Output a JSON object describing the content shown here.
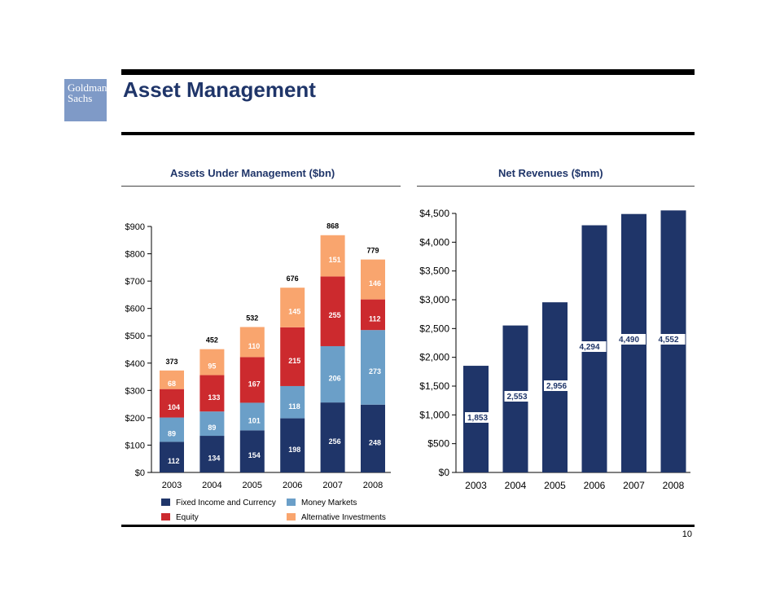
{
  "logo": {
    "line1": "Goldman",
    "line2": "Sachs"
  },
  "header": {
    "title": "Asset Management"
  },
  "page_number": "10",
  "chart_data": [
    {
      "type": "bar",
      "stacked": true,
      "title": "Assets Under Management ($bn)",
      "categories": [
        "2003",
        "2004",
        "2005",
        "2006",
        "2007",
        "2008"
      ],
      "yticks": [
        "$0",
        "$100",
        "$200",
        "$300",
        "$400",
        "$500",
        "$600",
        "$700",
        "$800",
        "$900"
      ],
      "ylim": [
        0,
        900
      ],
      "series": [
        {
          "name": "Fixed Income and Currency",
          "color": "#1f3569",
          "values": [
            112,
            134,
            154,
            198,
            256,
            248
          ]
        },
        {
          "name": "Money Markets",
          "color": "#6b9fc8",
          "values": [
            89,
            89,
            101,
            118,
            206,
            273
          ]
        },
        {
          "name": "Equity",
          "color": "#cc2a2e",
          "values": [
            104,
            133,
            167,
            215,
            255,
            112
          ]
        },
        {
          "name": "Alternative Investments",
          "color": "#f9a56e",
          "values": [
            68,
            95,
            110,
            145,
            151,
            146
          ]
        }
      ],
      "totals": [
        373,
        452,
        532,
        676,
        868,
        779
      ],
      "legend": "bottom"
    },
    {
      "type": "bar",
      "title": "Net Revenues ($mm)",
      "categories": [
        "2003",
        "2004",
        "2005",
        "2006",
        "2007",
        "2008"
      ],
      "values": [
        1853,
        2553,
        2956,
        4294,
        4490,
        4552
      ],
      "value_labels": [
        "1,853",
        "2,553",
        "2,956",
        "4,294",
        "4,490",
        "4,552"
      ],
      "yticks": [
        "$0",
        "$500",
        "$1,000",
        "$1,500",
        "$2,000",
        "$2,500",
        "$3,000",
        "$3,500",
        "$4,000",
        "$4,500"
      ],
      "ylim": [
        0,
        4500
      ],
      "color": "#1f3569"
    }
  ]
}
